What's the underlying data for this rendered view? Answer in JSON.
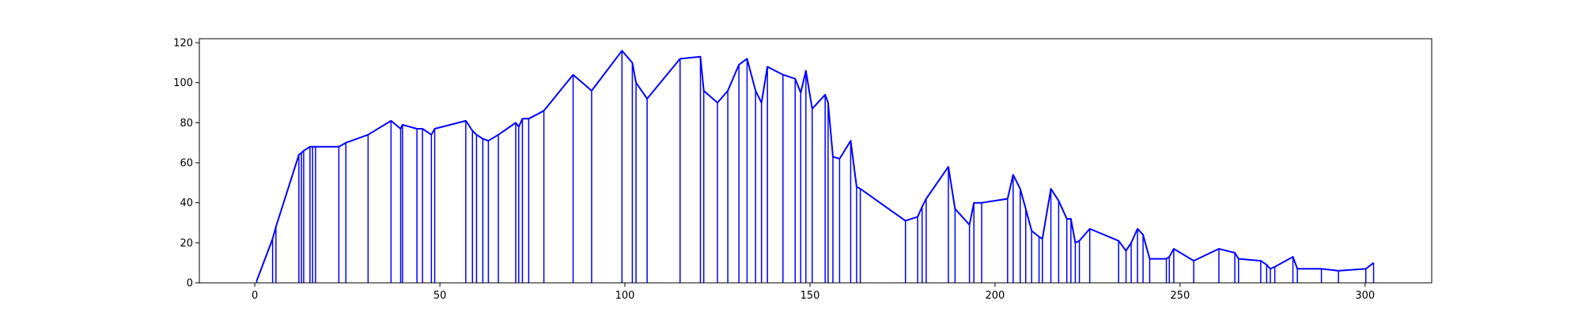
{
  "chart_data": {
    "type": "line",
    "title": "",
    "xlabel": "",
    "ylabel": "",
    "xlim": [
      -15,
      318
    ],
    "ylim": [
      0,
      122
    ],
    "grid": false,
    "legend": "none",
    "line_color": "#0000ff",
    "x_ticks": [
      0,
      50,
      100,
      150,
      200,
      250,
      300
    ],
    "y_ticks": [
      0,
      20,
      40,
      60,
      80,
      100,
      120
    ],
    "series": [
      {
        "baseline": 0,
        "x": [
          0.5,
          4.8,
          5.7,
          11.9,
          12.6,
          13.2,
          14.9,
          15.6,
          16.4,
          22.7,
          24.6,
          30.6,
          36.8,
          39.4,
          39.9,
          43.8,
          45.3,
          47.7,
          48.6,
          57.0,
          58.8,
          59.9,
          61.6,
          63.1,
          65.8,
          70.5,
          71.3,
          72.3,
          74.0,
          78.1,
          86.0,
          91.0,
          99.2,
          102.0,
          103.0,
          106.0,
          114.9,
          120.4,
          121.3,
          125.0,
          127.8,
          130.8,
          133.0,
          135.3,
          136.9,
          138.5,
          142.7,
          146.0,
          147.5,
          148.9,
          150.6,
          154.1,
          154.9,
          156.2,
          158.0,
          161.0,
          162.6,
          163.6,
          175.8,
          179.1,
          180.3,
          181.4,
          187.4,
          189.2,
          193.1,
          194.3,
          196.4,
          203.4,
          204.9,
          206.8,
          208.3,
          209.9,
          211.9,
          212.8,
          215.1,
          217.2,
          219.4,
          220.5,
          221.7,
          222.8,
          225.6,
          233.4,
          235.4,
          236.8,
          238.5,
          240.0,
          241.8,
          246.3,
          247.1,
          248.3,
          253.7,
          260.5,
          264.8,
          265.8,
          271.8,
          273.4,
          274.4,
          275.6,
          280.5,
          281.7,
          288.2,
          292.8,
          300.2,
          302.3
        ],
        "y": [
          1,
          22,
          28,
          64,
          65,
          66,
          68,
          68,
          68,
          68,
          70,
          74,
          81,
          77,
          79,
          77,
          77,
          74,
          77,
          81,
          76,
          74,
          72,
          71,
          74,
          80,
          78,
          82,
          82,
          86,
          104,
          96,
          116,
          110,
          100,
          92,
          112,
          113,
          96,
          90,
          96,
          109,
          112,
          96,
          90,
          108,
          104,
          102,
          95,
          106,
          87,
          94,
          90,
          63,
          62,
          71,
          48,
          47,
          31,
          33,
          38,
          42,
          58,
          37,
          29,
          40,
          40,
          42,
          54,
          47,
          37,
          26,
          23,
          22,
          47,
          41,
          32,
          32,
          20,
          21,
          27,
          21,
          16,
          20,
          27,
          24,
          12,
          12,
          13,
          17,
          11,
          17,
          15,
          12,
          11,
          9,
          7,
          8,
          13,
          7,
          7,
          6,
          7,
          10
        ]
      }
    ]
  }
}
